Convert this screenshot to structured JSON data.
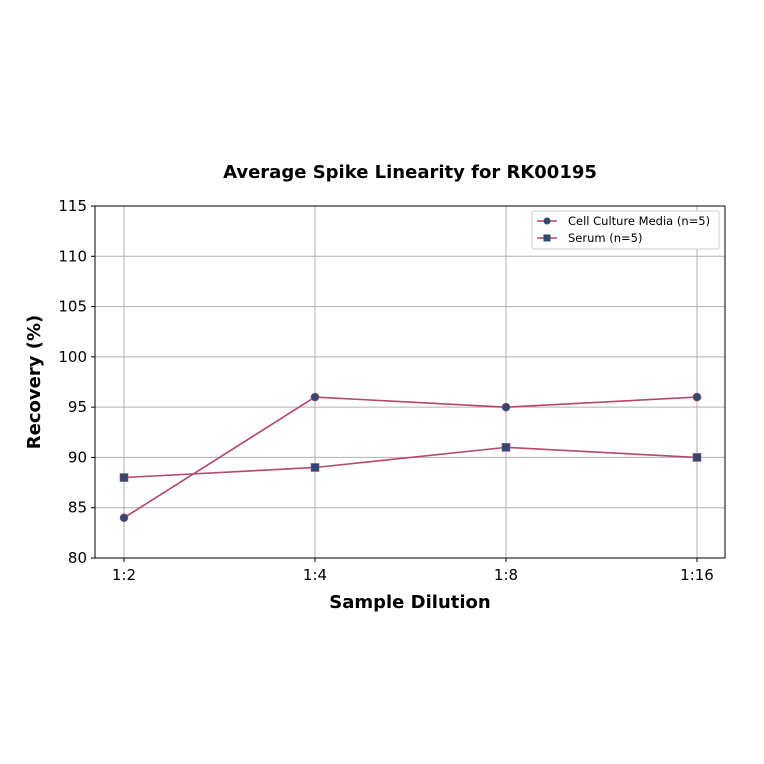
{
  "chart_data": {
    "type": "line",
    "title": "Average Spike Linearity for RK00195",
    "xlabel": "Sample Dilution",
    "ylabel": "Recovery (%)",
    "categories": [
      "1:2",
      "1:4",
      "1:8",
      "1:16"
    ],
    "series": [
      {
        "name": "Cell Culture Media (n=5)",
        "marker": "circle",
        "values": [
          84,
          96,
          95,
          96
        ]
      },
      {
        "name": "Serum (n=5)",
        "marker": "square",
        "values": [
          88,
          89,
          91,
          90
        ]
      }
    ],
    "ylim": [
      80,
      115
    ],
    "yticks": [
      80,
      85,
      90,
      95,
      100,
      105,
      110,
      115
    ],
    "grid": true,
    "legend_position": "upper right",
    "colors": {
      "line": "#b5476a",
      "marker": "#2e4a72"
    }
  }
}
